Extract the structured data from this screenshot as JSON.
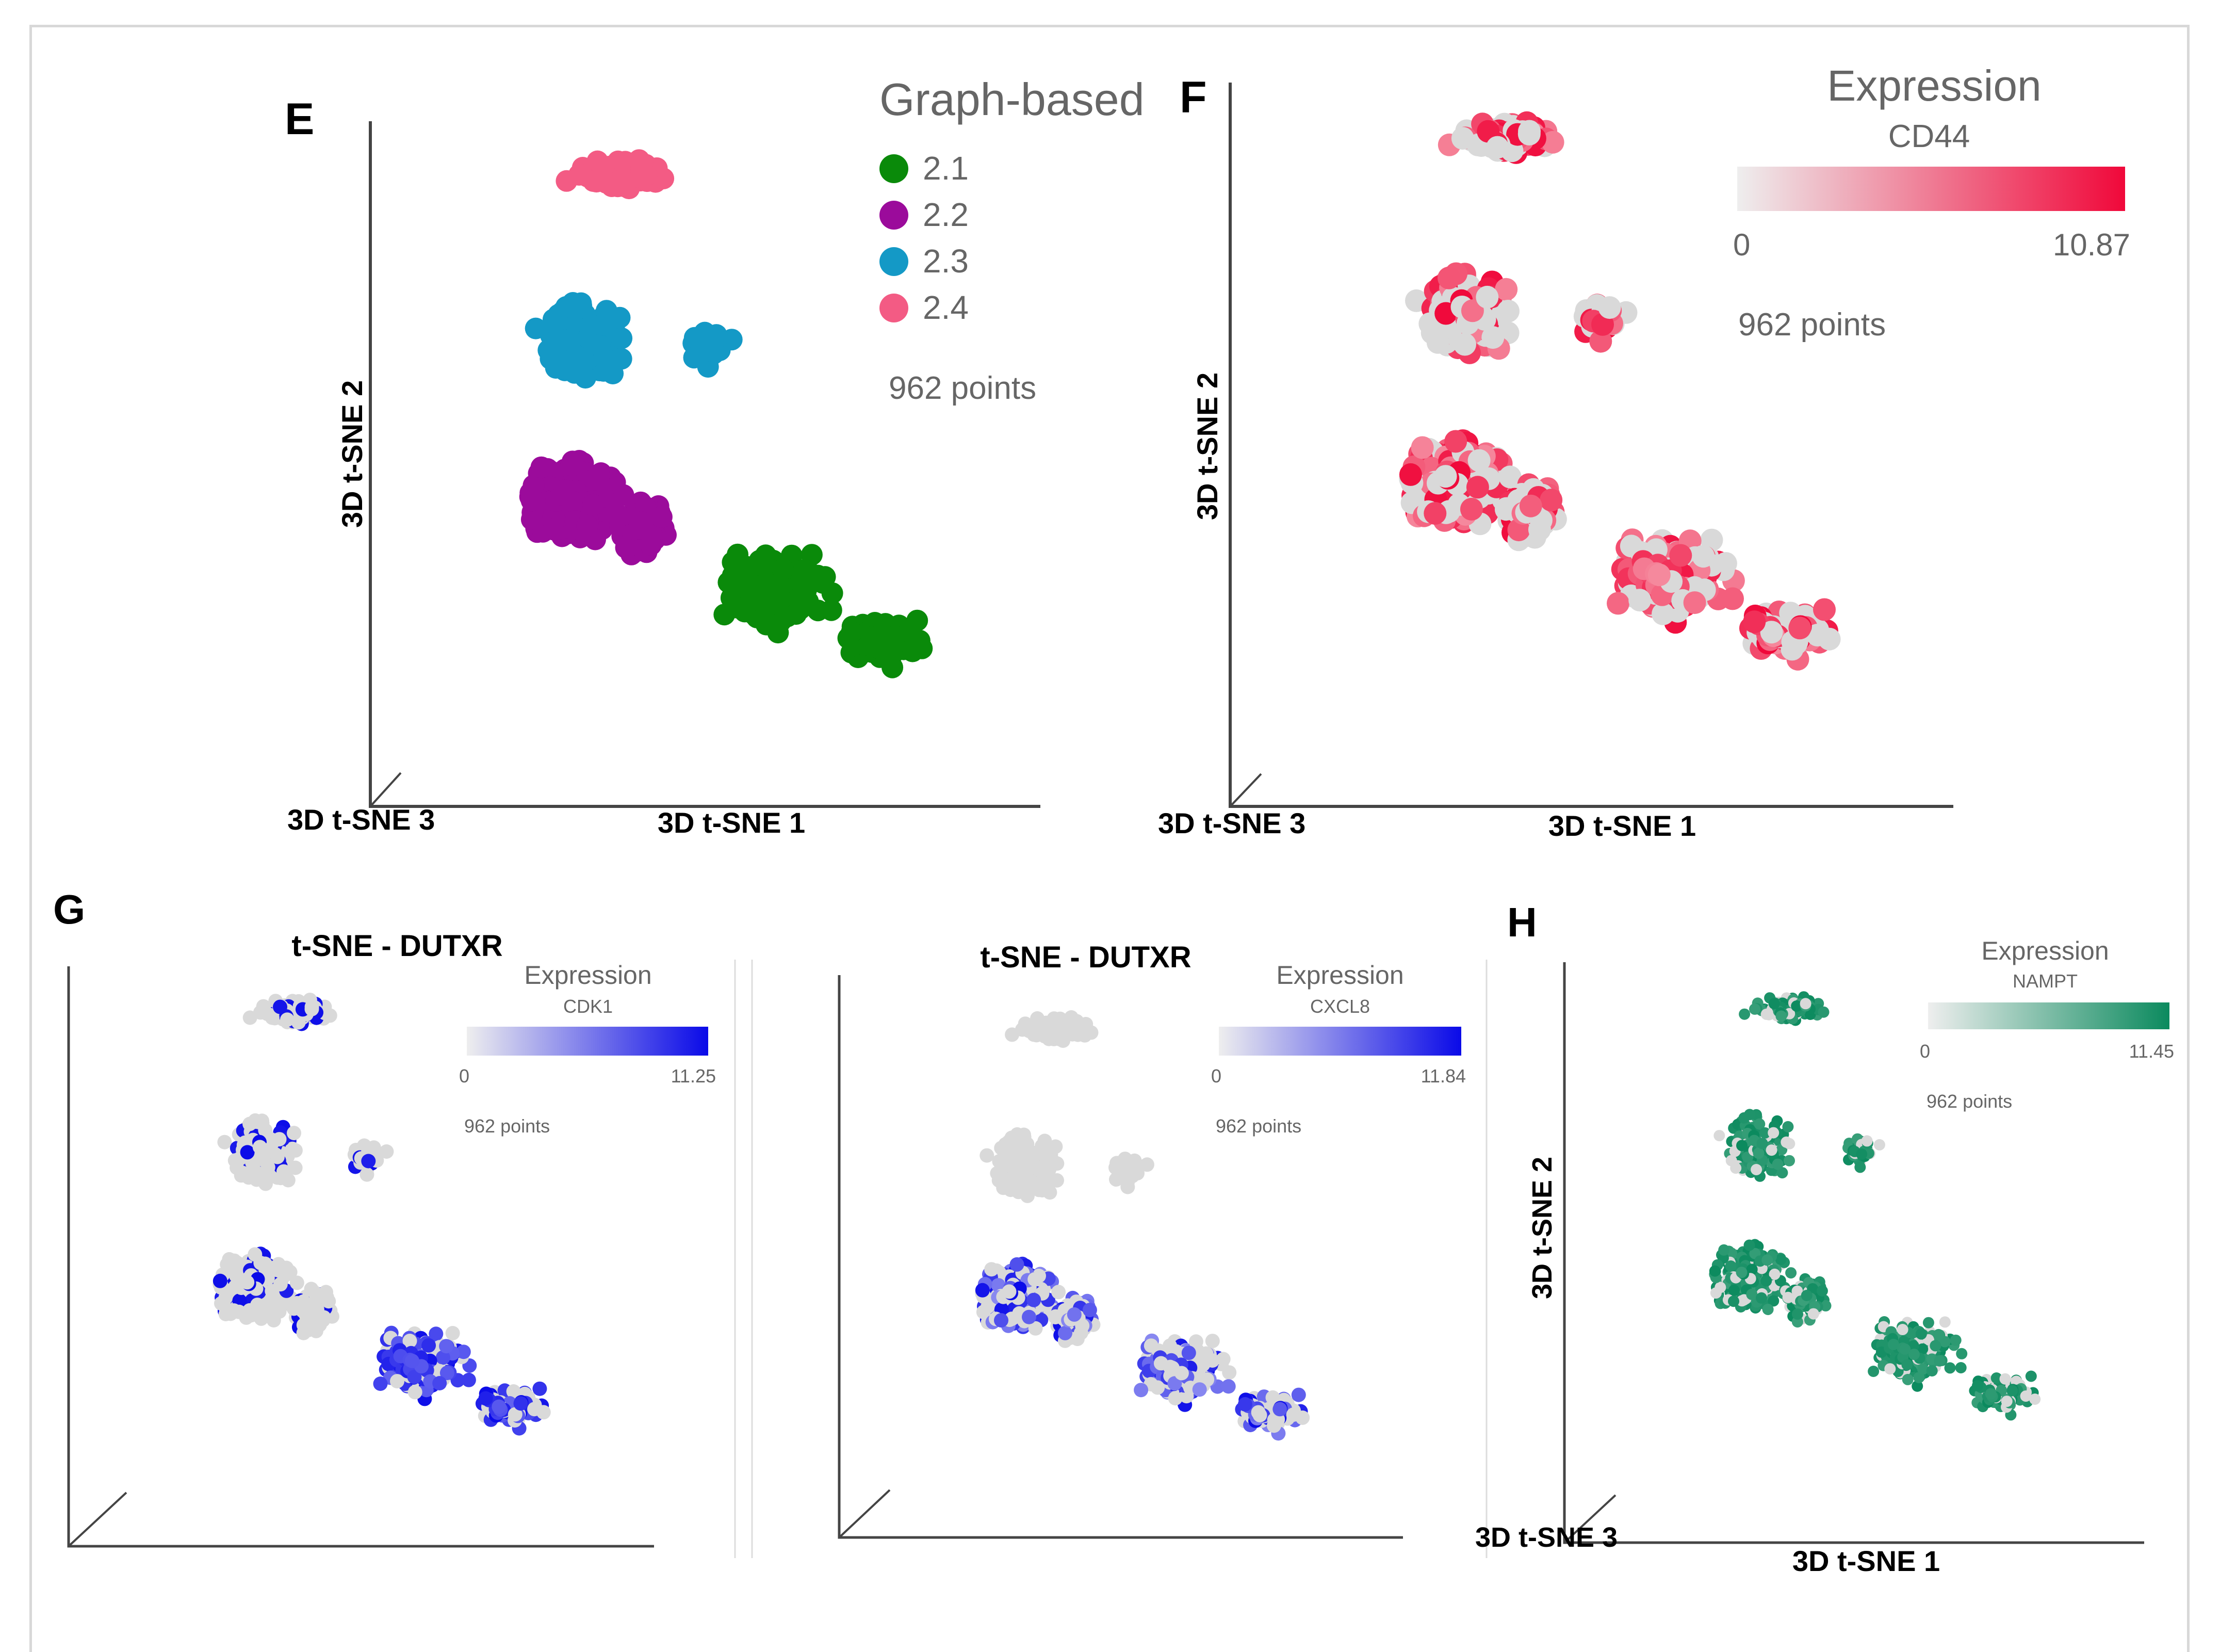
{
  "panels": {
    "E": {
      "letter": "E",
      "legend_title": "Graph-based",
      "points_label": "962 points",
      "x_label": "3D t-SNE 1",
      "y_label": "3D t-SNE 2",
      "z_label": "3D t-SNE 3"
    },
    "F": {
      "letter": "F",
      "legend_title": "Expression",
      "gene": "CD44",
      "min": "0",
      "max": "10.87",
      "points_label": "962 points",
      "x_label": "3D t-SNE 1",
      "y_label": "3D t-SNE 2",
      "z_label": "3D t-SNE 3"
    },
    "G1": {
      "letter": "G",
      "title": "t-SNE - DUTXR",
      "legend_title": "Expression",
      "gene": "CDK1",
      "min": "0",
      "max": "11.25",
      "points_label": "962 points"
    },
    "G2": {
      "title": "t-SNE - DUTXR",
      "legend_title": "Expression",
      "gene": "CXCL8",
      "min": "0",
      "max": "11.84",
      "points_label": "962 points"
    },
    "H": {
      "letter": "H",
      "legend_title": "Expression",
      "gene": "NAMPT",
      "min": "0",
      "max": "11.45",
      "points_label": "962 points",
      "x_label": "3D t-SNE 1",
      "y_label": "3D t-SNE 2",
      "z_label": "3D t-SNE 3"
    }
  },
  "chart_data": [
    {
      "type": "scatter",
      "panel": "E",
      "title": "",
      "color_by": "Graph-based cluster",
      "n_points": 962,
      "legend": [
        {
          "label": "2.1",
          "color": "#0a8a0a"
        },
        {
          "label": "2.2",
          "color": "#9b0b9b"
        },
        {
          "label": "2.3",
          "color": "#1499c6"
        },
        {
          "label": "2.4",
          "color": "#f35b84"
        }
      ],
      "xlabel": "3D t-SNE 1",
      "ylabel": "3D t-SNE 2",
      "zlabel": "3D t-SNE 3"
    },
    {
      "type": "scatter",
      "panel": "F",
      "title": "",
      "color_by": "Expression CD44",
      "n_points": 962,
      "colorscale": {
        "min": 0,
        "max": 10.87,
        "low_color": "#e3e3e3",
        "high_color": "#f0083a"
      },
      "xlabel": "3D t-SNE 1",
      "ylabel": "3D t-SNE 2",
      "zlabel": "3D t-SNE 3"
    },
    {
      "type": "scatter",
      "panel": "G",
      "title": "t-SNE - DUTXR",
      "color_by": "Expression CDK1",
      "n_points": 962,
      "colorscale": {
        "min": 0,
        "max": 11.25,
        "low_color": "#e3e3e3",
        "high_color": "#0a0ae8"
      }
    },
    {
      "type": "scatter",
      "panel": "G",
      "title": "t-SNE - DUTXR",
      "color_by": "Expression CXCL8",
      "n_points": 962,
      "colorscale": {
        "min": 0,
        "max": 11.84,
        "low_color": "#e3e3e3",
        "high_color": "#0a0ae8"
      }
    },
    {
      "type": "scatter",
      "panel": "H",
      "title": "",
      "color_by": "Expression NAMPT",
      "n_points": 962,
      "colorscale": {
        "min": 0,
        "max": 11.45,
        "low_color": "#e3e3e3",
        "high_color": "#0b8a5e"
      },
      "xlabel": "3D t-SNE 1",
      "ylabel": "3D t-SNE 2",
      "zlabel": "3D t-SNE 3"
    }
  ],
  "colors": {
    "grey_point": "#d9d9d9",
    "cluster_21": "#0a8a0a",
    "cluster_22": "#9b0b9b",
    "cluster_23": "#1499c6",
    "cluster_24": "#f35b84",
    "red": "#f0083a",
    "blue": "#0a0ae8",
    "green": "#0b8a5e"
  }
}
